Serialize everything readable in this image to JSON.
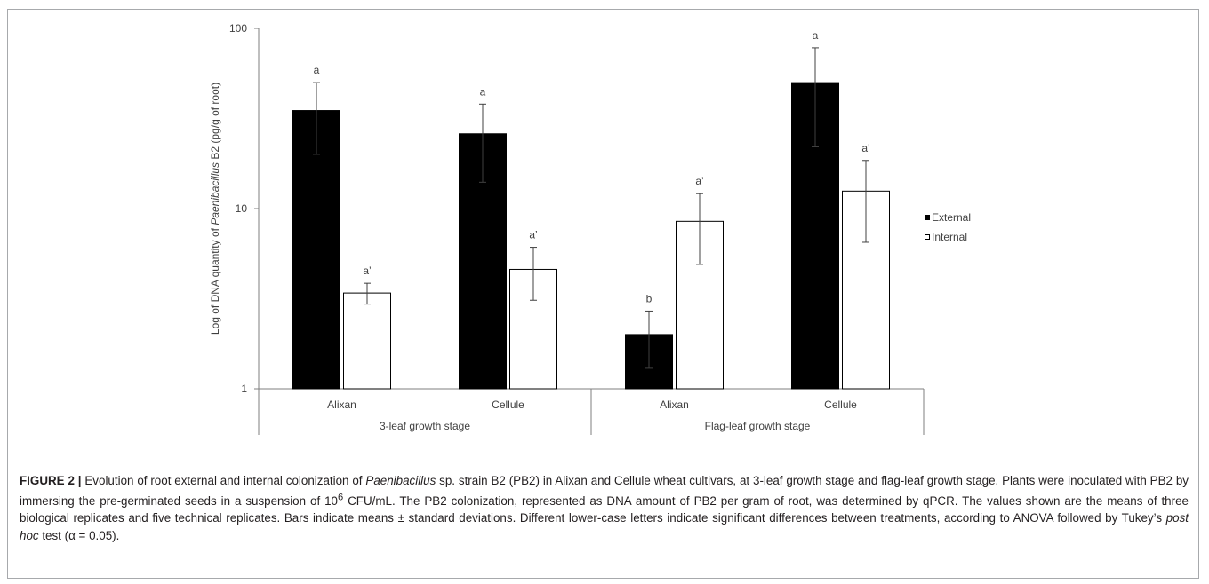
{
  "chart_data": {
    "type": "bar",
    "yscale": "log",
    "ylim": [
      1,
      100
    ],
    "yticks": [
      "1",
      "10",
      "100"
    ],
    "ylabel_parts": [
      "Log of DNA quantity  of ",
      "Paenibacillus",
      " B2 (pg/g of root)"
    ],
    "categories": [
      "Alixan",
      "Cellule",
      "Alixan",
      "Cellule"
    ],
    "groups": [
      {
        "label": "3-leaf growth stage",
        "categories": [
          "Alixan",
          "Cellule"
        ]
      },
      {
        "label": "Flag-leaf growth stage",
        "categories": [
          "Alixan",
          "Cellule"
        ]
      }
    ],
    "series": [
      {
        "name": "External",
        "color": "#000000",
        "values": [
          35,
          26,
          2.0,
          50
        ],
        "errors": [
          15,
          12,
          0.7,
          28
        ],
        "letters": [
          "a",
          "a",
          "b",
          "a"
        ]
      },
      {
        "name": "Internal",
        "color": "#ffffff",
        "values": [
          3.4,
          4.6,
          8.5,
          12.5
        ],
        "errors": [
          0.45,
          1.5,
          3.6,
          6.0
        ],
        "letters": [
          "a’",
          "a’",
          "a’",
          "a’"
        ]
      }
    ],
    "legend_position": "right"
  },
  "caption": {
    "label": "FIGURE 2 |",
    "segments": [
      {
        "t": " Evolution of root external and internal colonization of "
      },
      {
        "t": "Paenibacillus",
        "i": true
      },
      {
        "t": " sp. strain B2 (PB2) in Alixan and Cellule wheat cultivars, at 3-leaf growth stage and flag-leaf growth stage. Plants were inoculated with PB2 by immersing the pre-germinated seeds in a suspension of 10"
      },
      {
        "t": "6",
        "sup": true
      },
      {
        "t": " CFU/mL. The PB2 colonization, represented as DNA amount of PB2 per gram of root, was determined by qPCR. The values shown are the means of three biological replicates and five technical replicates. Bars indicate means ± standard deviations. Different lower-case letters indicate significant differences between treatments, according to ANOVA followed by Tukey’s "
      },
      {
        "t": "post hoc",
        "i": true
      },
      {
        "t": " test (α = 0.05)."
      }
    ]
  }
}
